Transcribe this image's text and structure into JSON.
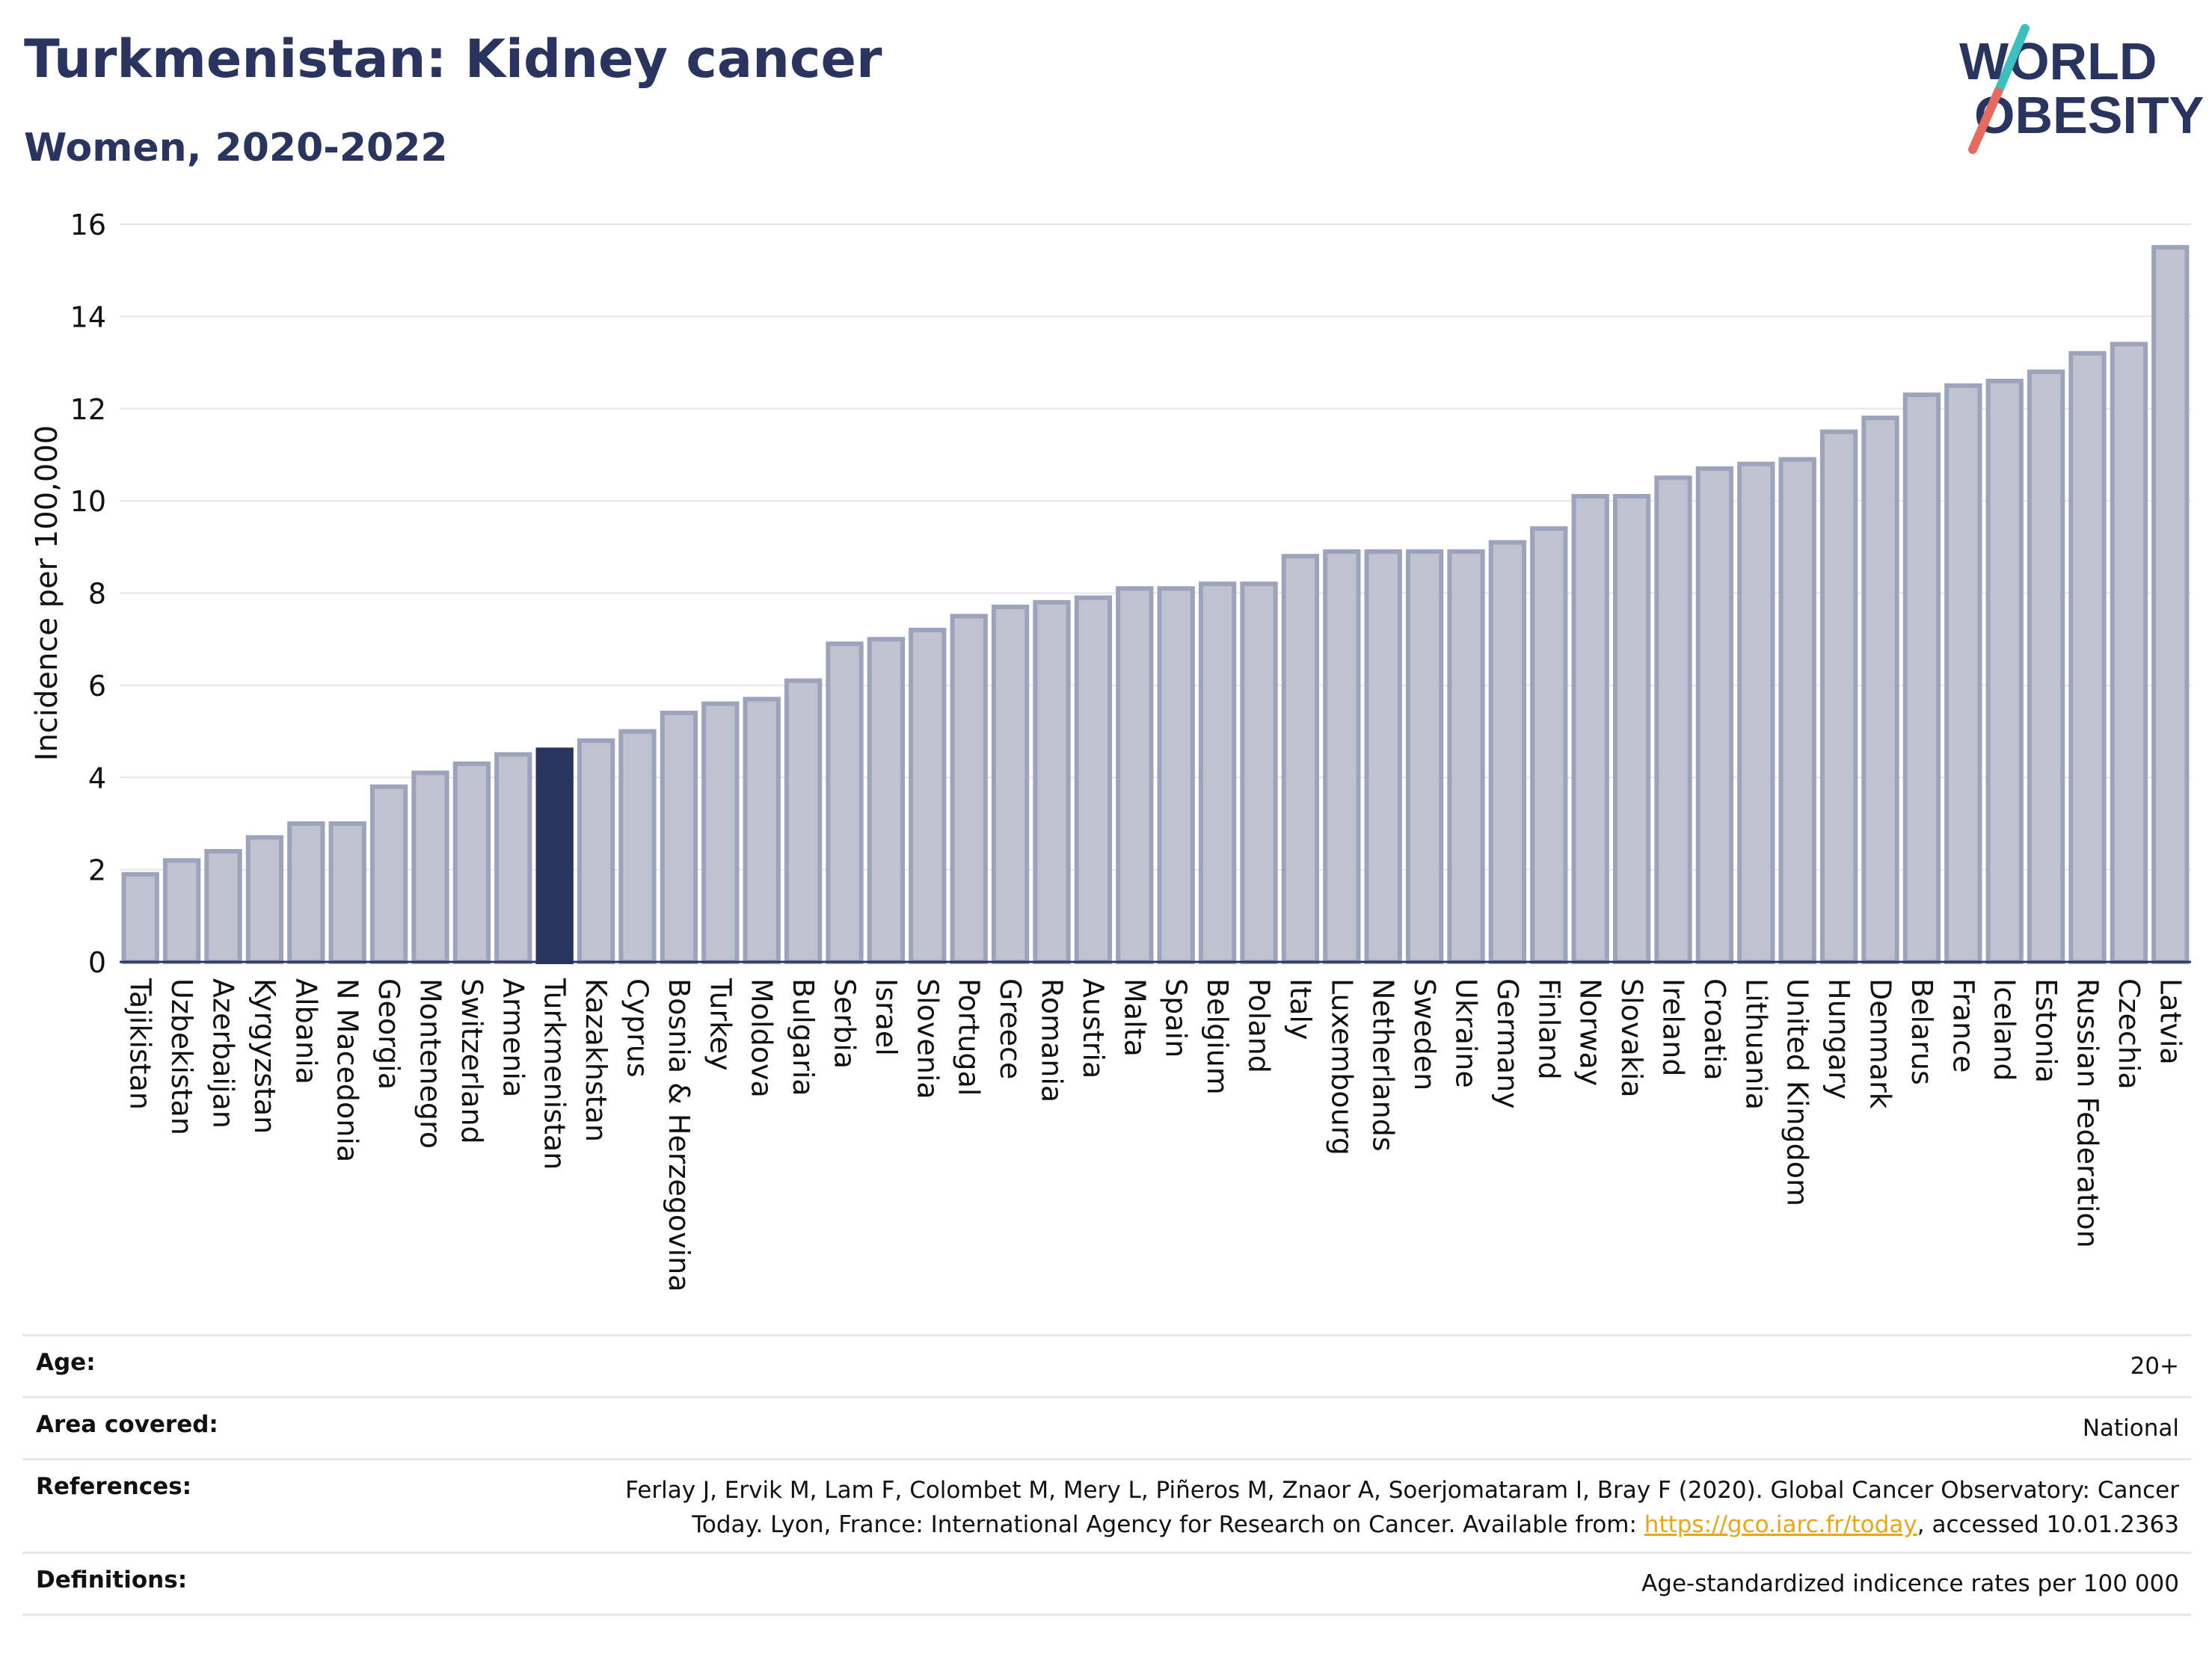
{
  "header": {
    "title": "Turkmenistan: Kidney cancer",
    "subtitle": "Women, 2020-2022"
  },
  "logo": {
    "line1": "WORLD",
    "line2": "OBESITY"
  },
  "chart_data": {
    "type": "bar",
    "ylabel": "Incidence per 100,000",
    "ylim": [
      0,
      16
    ],
    "yticks": [
      0,
      2,
      4,
      6,
      8,
      10,
      12,
      14,
      16
    ],
    "grid": true,
    "highlight": "Turkmenistan",
    "colors": {
      "bar": "#bfc3d0",
      "bar_edge": "#9ea3bc",
      "highlight": "#2a355f"
    },
    "categories": [
      "Tajikistan",
      "Uzbekistan",
      "Azerbaijan",
      "Kyrgyzstan",
      "Albania",
      "N Macedonia",
      "Georgia",
      "Montenegro",
      "Switzerland",
      "Armenia",
      "Turkmenistan",
      "Kazakhstan",
      "Cyprus",
      "Bosnia & Herzegovina",
      "Turkey",
      "Moldova",
      "Bulgaria",
      "Serbia",
      "Israel",
      "Slovenia",
      "Portugal",
      "Greece",
      "Romania",
      "Austria",
      "Malta",
      "Spain",
      "Belgium",
      "Poland",
      "Italy",
      "Luxembourg",
      "Netherlands",
      "Sweden",
      "Ukraine",
      "Germany",
      "Finland",
      "Norway",
      "Slovakia",
      "Ireland",
      "Croatia",
      "Lithuania",
      "United Kingdom",
      "Hungary",
      "Denmark",
      "Belarus",
      "France",
      "Iceland",
      "Estonia",
      "Russian Federation",
      "Czechia",
      "Latvia"
    ],
    "values": [
      1.9,
      2.2,
      2.4,
      2.7,
      3.0,
      3.0,
      3.8,
      4.1,
      4.3,
      4.5,
      4.6,
      4.8,
      5.0,
      5.4,
      5.6,
      5.7,
      6.1,
      6.9,
      7.0,
      7.2,
      7.5,
      7.7,
      7.8,
      7.9,
      8.1,
      8.1,
      8.2,
      8.2,
      8.8,
      8.9,
      8.9,
      8.9,
      8.9,
      9.1,
      9.4,
      10.1,
      10.1,
      10.5,
      10.7,
      10.8,
      10.9,
      11.5,
      11.8,
      12.3,
      12.5,
      12.6,
      12.8,
      13.2,
      13.4,
      15.5
    ]
  },
  "meta": {
    "age_label": "Age:",
    "age_value": "20+",
    "area_label": "Area covered:",
    "area_value": "National",
    "references_label": "References:",
    "references_line1": "Ferlay J, Ervik M, Lam F, Colombet M, Mery L, Piñeros M, Znaor A, Soerjomataram I, Bray F (2020). Global Cancer Observatory: Cancer",
    "references_line2_pre": "Today. Lyon, France: International Agency for Research on Cancer. Available from: ",
    "references_link": "https://gco.iarc.fr/today",
    "references_line2_post": ", accessed 10.01.2363",
    "definitions_label": "Definitions:",
    "definitions_value": "Age-standardized indicence rates per 100 000"
  }
}
